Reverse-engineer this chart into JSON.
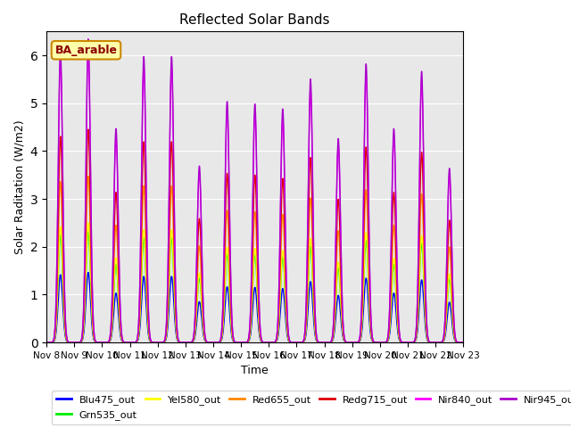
{
  "title": "Reflected Solar Bands",
  "xlabel": "Time",
  "ylabel": "Solar Raditation (W/m2)",
  "ylim": [
    0,
    6.5
  ],
  "annotation": "BA_arable",
  "plot_bg_color": "#e8e8e8",
  "fig_bg_color": "#ffffff",
  "series": [
    {
      "label": "Blu475_out",
      "color": "#0000ff",
      "lw": 1.0,
      "scale": 0.24
    },
    {
      "label": "Grn535_out",
      "color": "#00ee00",
      "lw": 1.0,
      "scale": 0.38
    },
    {
      "label": "Yel580_out",
      "color": "#ffff00",
      "lw": 1.0,
      "scale": 0.41
    },
    {
      "label": "Red655_out",
      "color": "#ff8800",
      "lw": 1.0,
      "scale": 0.57
    },
    {
      "label": "Redg715_out",
      "color": "#dd0000",
      "lw": 1.0,
      "scale": 0.73
    },
    {
      "label": "Nir840_out",
      "color": "#ff00ff",
      "lw": 1.0,
      "scale": 1.0
    },
    {
      "label": "Nir945_out",
      "color": "#aa00cc",
      "lw": 1.0,
      "scale": 1.04
    }
  ],
  "day_peaks_nir840": [
    5.9,
    6.1,
    4.3,
    5.75,
    5.75,
    3.55,
    4.85,
    4.8,
    4.7,
    5.3,
    4.1,
    5.6,
    4.3,
    5.45,
    3.5
  ],
  "num_days": 15,
  "start_day": 8,
  "total_points": 1500,
  "peak_sigma": 0.08,
  "figsize": [
    6.4,
    4.8
  ],
  "dpi": 100
}
